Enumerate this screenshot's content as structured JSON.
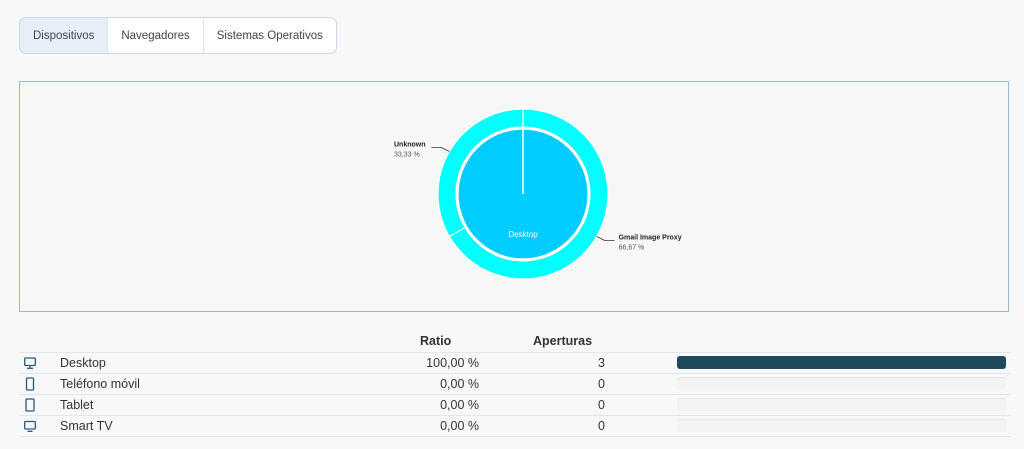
{
  "tabs": [
    {
      "label": "Dispositivos",
      "active": true
    },
    {
      "label": "Navegadores",
      "active": false
    },
    {
      "label": "Sistemas Operativos",
      "active": false
    }
  ],
  "chart_data": {
    "type": "pie",
    "inner": {
      "slices": [
        {
          "label": "Desktop",
          "value": 100.0,
          "color": "#00ccff"
        }
      ]
    },
    "outer": {
      "slices": [
        {
          "label": "Gmail Image Proxy",
          "value": 66.67,
          "display": "66,67 %",
          "color": "#00ffff"
        },
        {
          "label": "Unknown",
          "value": 33.33,
          "display": "33,33 %",
          "color": "#00ffff"
        }
      ]
    }
  },
  "table": {
    "headers": {
      "ratio": "Ratio",
      "opens": "Aperturas"
    },
    "rows": [
      {
        "icon": "desktop-icon",
        "name": "Desktop",
        "ratio": "100,00 %",
        "opens": "3",
        "fraction": 1.0
      },
      {
        "icon": "mobile-phone-icon",
        "name": "Teléfono móvil",
        "ratio": "0,00 %",
        "opens": "0",
        "fraction": 0.0
      },
      {
        "icon": "tablet-icon",
        "name": "Tablet",
        "ratio": "0,00 %",
        "opens": "0",
        "fraction": 0.0
      },
      {
        "icon": "tv-icon",
        "name": "Smart TV",
        "ratio": "0,00 %",
        "opens": "0",
        "fraction": 0.0
      }
    ]
  },
  "colors": {
    "bar": "#1f4a5e"
  }
}
